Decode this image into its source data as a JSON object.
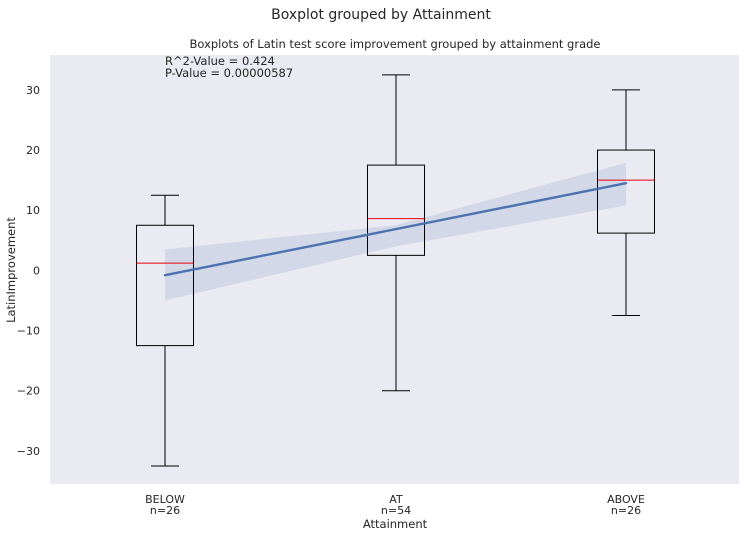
{
  "chart_data": {
    "type": "box",
    "suptitle": "Boxplot grouped by Attainment",
    "title": "Boxplots of Latin test score improvement grouped by attainment grade",
    "xlabel": "Attainment",
    "ylabel": "LatinImprovement",
    "ylim": [
      -35.5,
      35.8
    ],
    "yticks": [
      -30,
      -20,
      -10,
      0,
      10,
      20,
      30
    ],
    "grid": false,
    "categories": [
      "BELOW",
      "AT",
      "ABOVE"
    ],
    "counts": [
      "n=26",
      "n=54",
      "n=26"
    ],
    "boxes": [
      {
        "name": "BELOW",
        "whisker_low": -32.5,
        "q1": -12.5,
        "median": 1.2,
        "q3": 7.5,
        "whisker_high": 12.5
      },
      {
        "name": "AT",
        "whisker_low": -20.0,
        "q1": 2.5,
        "median": 8.6,
        "q3": 17.5,
        "whisker_high": 32.5
      },
      {
        "name": "ABOVE",
        "whisker_low": -7.5,
        "q1": 6.2,
        "median": 15.0,
        "q3": 20.0,
        "whisker_high": 30.0
      }
    ],
    "regression": {
      "line": [
        [
          1,
          -0.8
        ],
        [
          3,
          14.5
        ]
      ],
      "ci_lower": [
        [
          1,
          -5.0
        ],
        [
          2,
          4.0
        ],
        [
          3,
          10.8
        ]
      ],
      "ci_upper": [
        [
          1,
          3.5
        ],
        [
          2,
          7.5
        ],
        [
          3,
          17.9
        ]
      ]
    },
    "annotation_lines": [
      "R^2-Value = 0.424",
      "P-Value = 0.00000587"
    ],
    "colors": {
      "plot_bg": "#eaeaf2",
      "box": "#000000",
      "median": "#e8000b",
      "regression": "#4c72b0",
      "ci_band": "#4c72b0"
    }
  }
}
